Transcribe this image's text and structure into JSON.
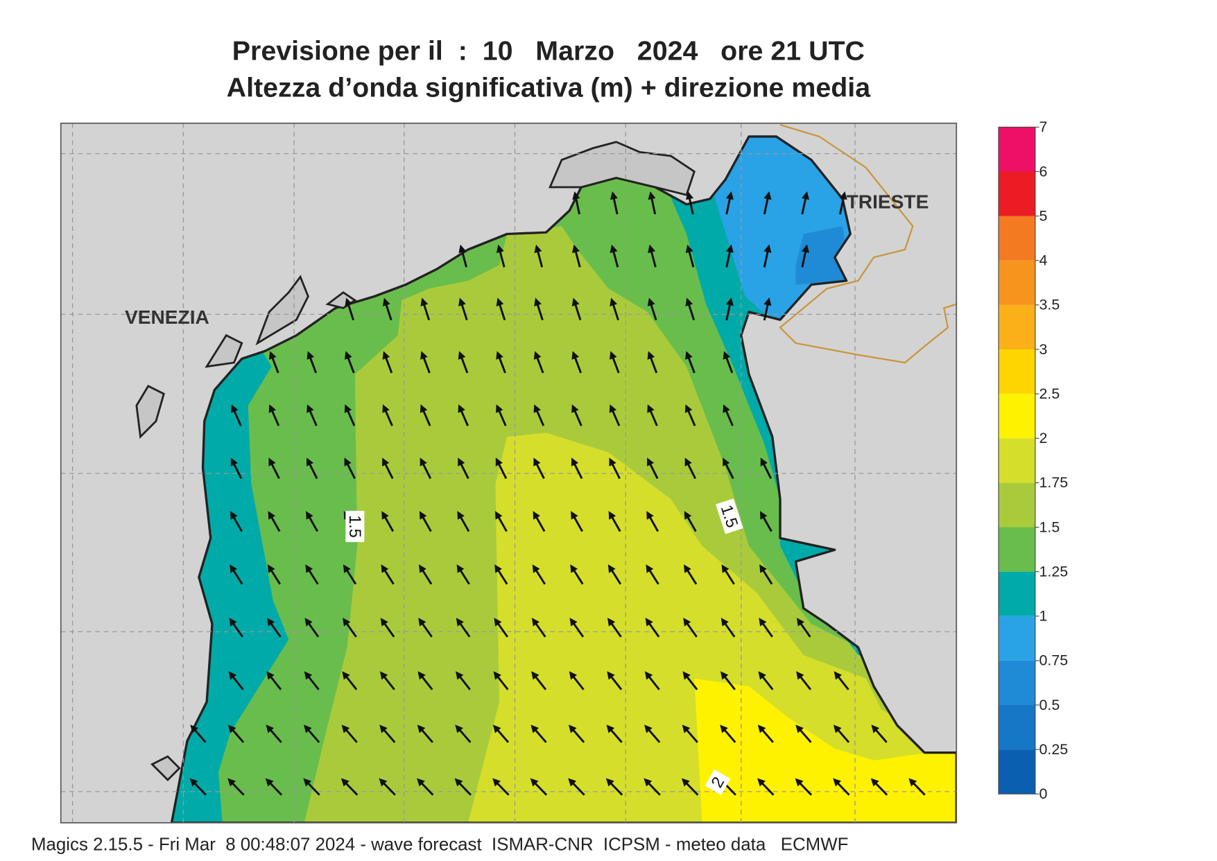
{
  "title": "Previsione per il  :  10   Marzo   2024   ore 21 UTC",
  "subtitle": "Altezza d’onda significativa (m) + direzione media",
  "places": [
    "VENEZIA",
    "TRIESTE"
  ],
  "contour_labels": [
    1.5,
    1.5,
    2
  ],
  "colorbar": {
    "levels": [
      0,
      0.25,
      0.5,
      0.75,
      1,
      1.25,
      1.5,
      1.75,
      2,
      2.5,
      3,
      3.5,
      4,
      5,
      6,
      7
    ],
    "colors": [
      "#0b5fb0",
      "#1677c6",
      "#1f8bd6",
      "#2aa2e6",
      "#00aaa8",
      "#69bd4c",
      "#a9cb3b",
      "#d5de2a",
      "#fff200",
      "#ffd500",
      "#fbb01a",
      "#f7941d",
      "#f47a22",
      "#ec1c24",
      "#ec1166"
    ]
  },
  "footer": "Magics 2.15.5 - Fri Mar  8 00:48:07 2024 - wave forecast  ISMAR-CNR  ICPSM - meteo data   ECMWF"
}
